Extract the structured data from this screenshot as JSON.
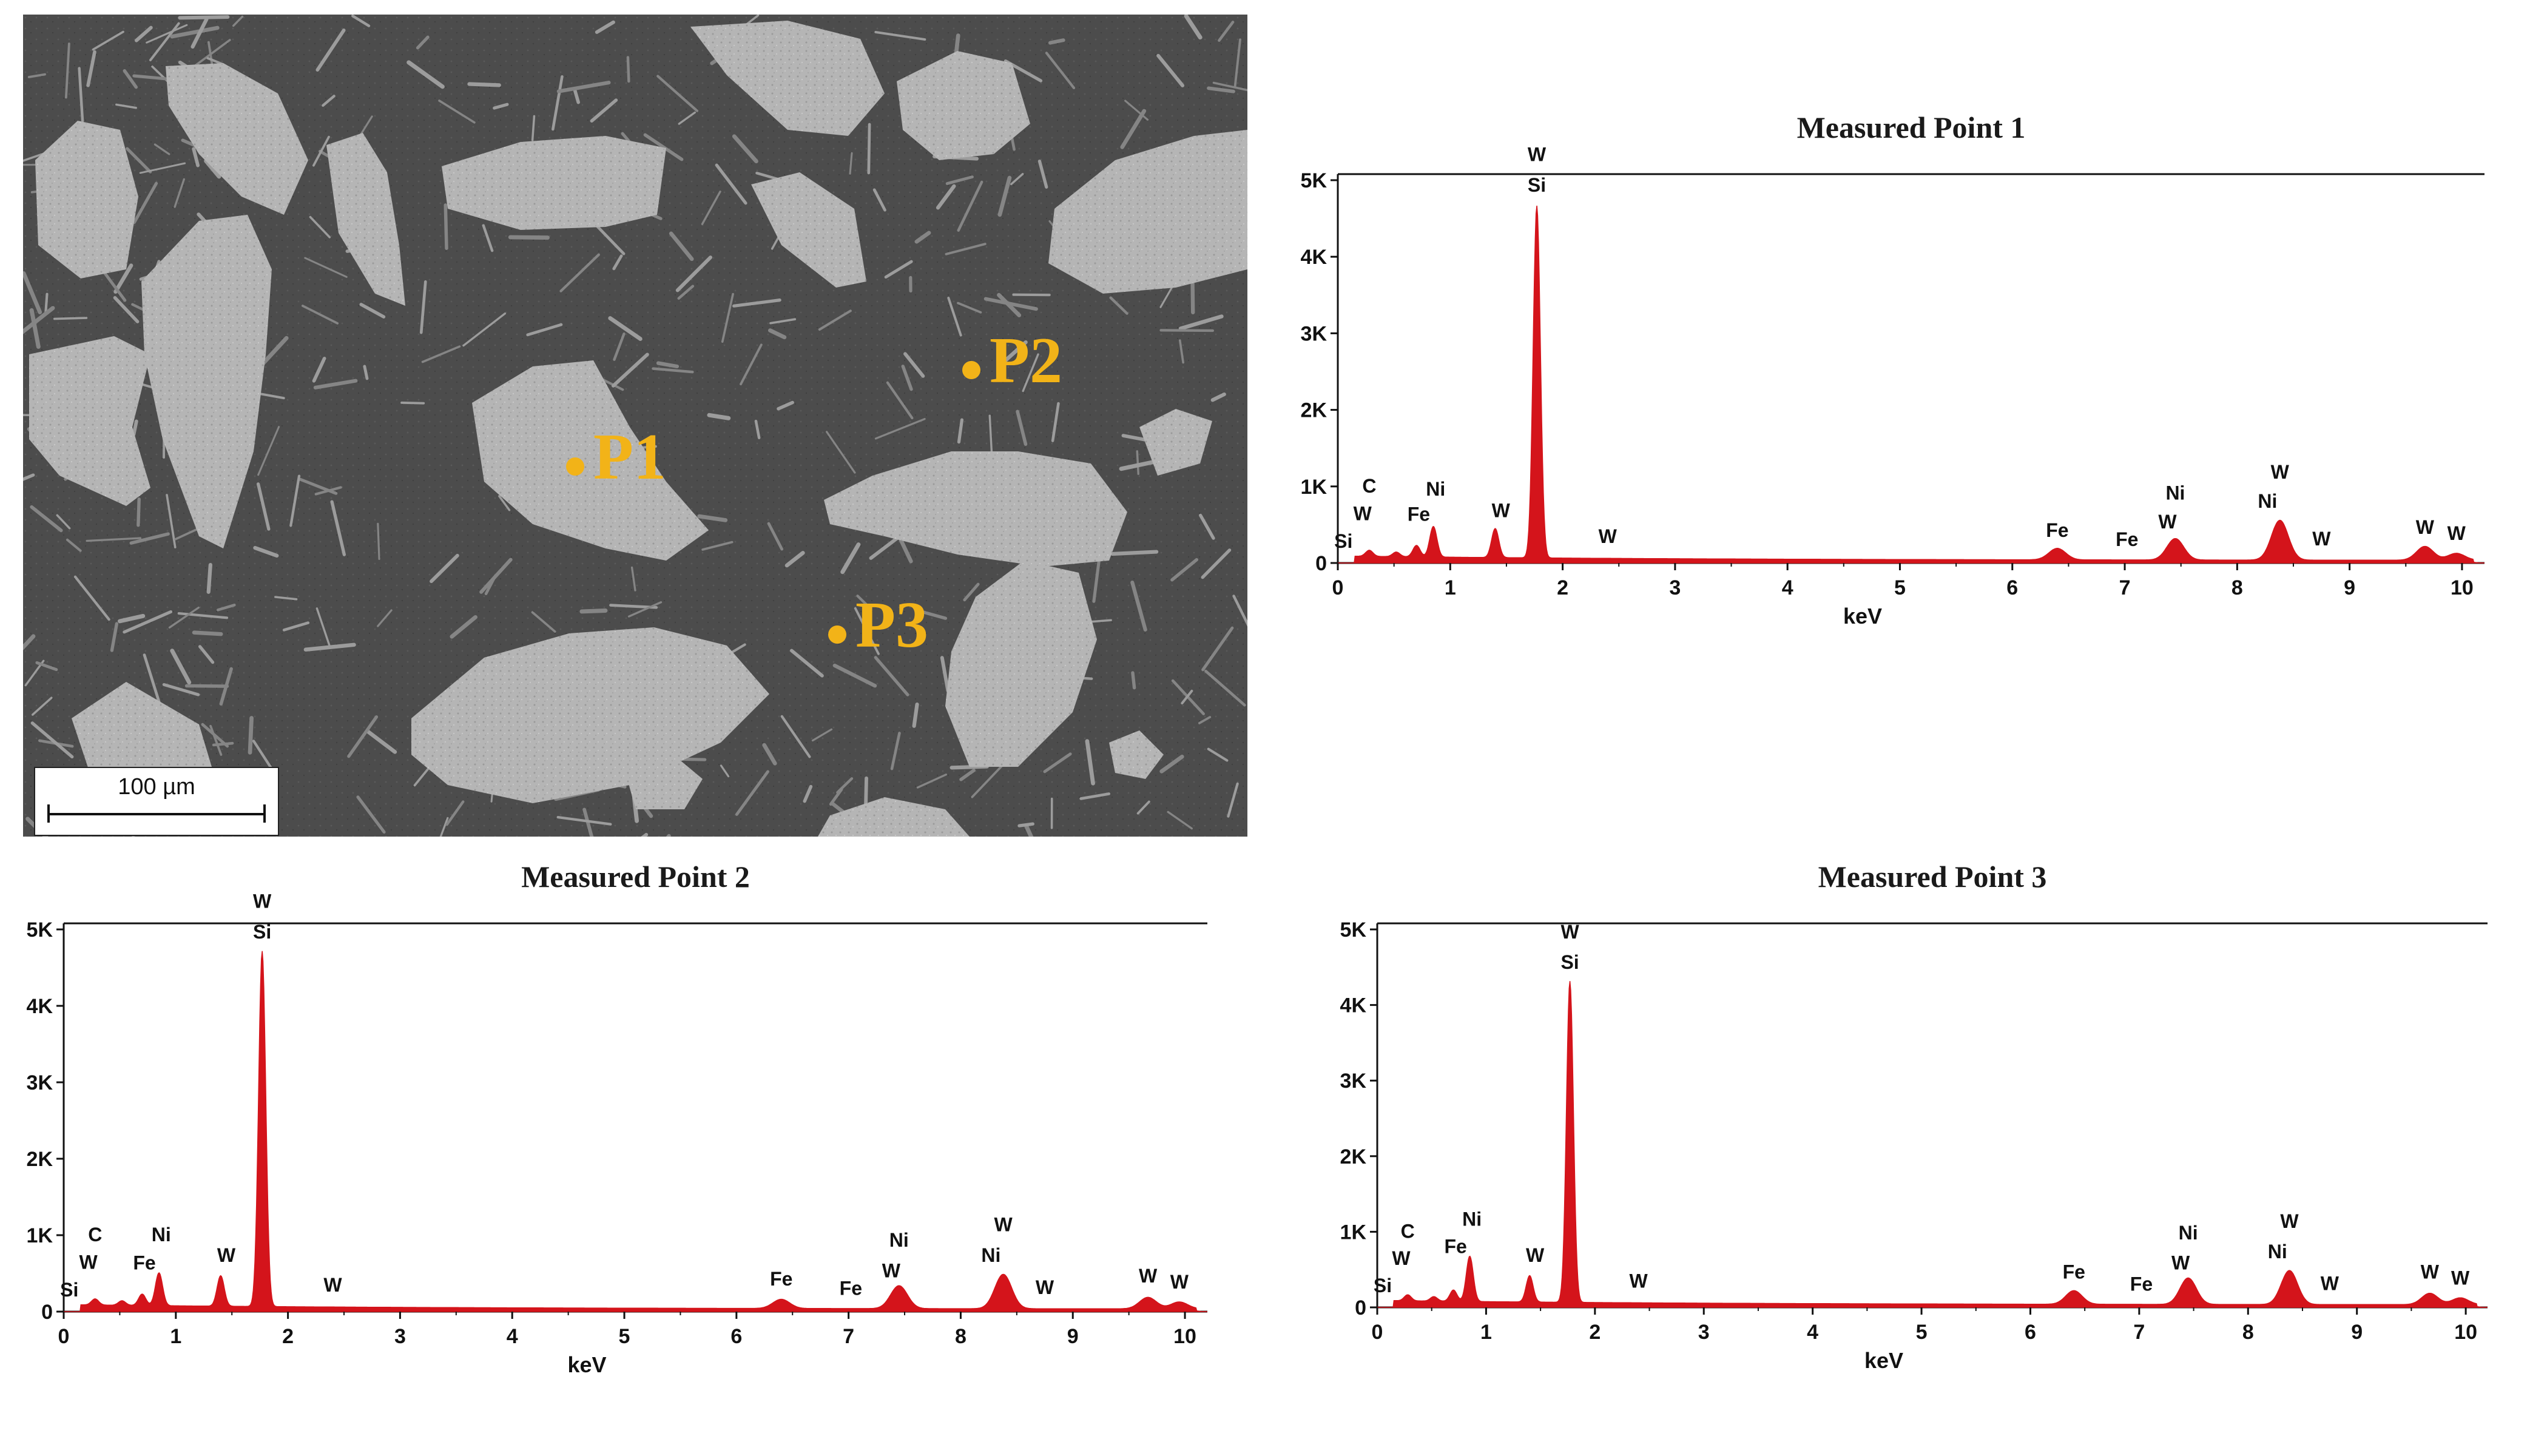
{
  "micrograph": {
    "scale_label": "100 µm",
    "point_color": "#f2b318",
    "points": [
      {
        "label": "P1"
      },
      {
        "label": "P2"
      },
      {
        "label": "P3"
      }
    ]
  },
  "colors": {
    "spectrum_fill": "#d4141b",
    "axis": "#111111"
  },
  "chart_data": [
    {
      "type": "area",
      "title": "Measured Point 1",
      "xlabel": "keV",
      "ylabel": "",
      "xlim": [
        0,
        10.2
      ],
      "ylim": [
        0,
        5000
      ],
      "x_ticks": [
        "0",
        "1",
        "2",
        "3",
        "4",
        "5",
        "6",
        "7",
        "8",
        "9",
        "10"
      ],
      "y_ticks": [
        "0",
        "1K",
        "2K",
        "3K",
        "4K",
        "5K"
      ],
      "peaks": [
        {
          "x": 0.28,
          "y": 80
        },
        {
          "x": 0.52,
          "y": 60
        },
        {
          "x": 0.7,
          "y": 150
        },
        {
          "x": 0.85,
          "y": 400
        },
        {
          "x": 1.4,
          "y": 380
        },
        {
          "x": 1.77,
          "y": 4600
        },
        {
          "x": 6.4,
          "y": 150
        },
        {
          "x": 7.45,
          "y": 280
        },
        {
          "x": 8.38,
          "y": 520
        },
        {
          "x": 9.67,
          "y": 180
        },
        {
          "x": 9.95,
          "y": 90
        }
      ],
      "peak_labels": [
        {
          "x": 0.05,
          "y": 200,
          "text": "Si"
        },
        {
          "x": 0.22,
          "y": 560,
          "text": "W"
        },
        {
          "x": 0.28,
          "y": 920,
          "text": "C"
        },
        {
          "x": 0.72,
          "y": 550,
          "text": "Fe"
        },
        {
          "x": 0.87,
          "y": 880,
          "text": "Ni"
        },
        {
          "x": 1.45,
          "y": 600,
          "text": "W"
        },
        {
          "x": 1.77,
          "y": 4850,
          "text": "Si"
        },
        {
          "x": 1.77,
          "y": 5250,
          "text": "W"
        },
        {
          "x": 2.4,
          "y": 260,
          "text": "W"
        },
        {
          "x": 6.4,
          "y": 340,
          "text": "Fe"
        },
        {
          "x": 7.02,
          "y": 220,
          "text": "Fe"
        },
        {
          "x": 7.38,
          "y": 450,
          "text": "W"
        },
        {
          "x": 7.45,
          "y": 830,
          "text": "Ni"
        },
        {
          "x": 8.27,
          "y": 720,
          "text": "Ni"
        },
        {
          "x": 8.38,
          "y": 1100,
          "text": "W"
        },
        {
          "x": 8.75,
          "y": 230,
          "text": "W"
        },
        {
          "x": 9.67,
          "y": 380,
          "text": "W"
        },
        {
          "x": 9.95,
          "y": 300,
          "text": "W"
        }
      ]
    },
    {
      "type": "area",
      "title": "Measured Point 2",
      "xlabel": "keV",
      "ylabel": "",
      "xlim": [
        0,
        10.2
      ],
      "ylim": [
        0,
        5000
      ],
      "x_ticks": [
        "0",
        "1",
        "2",
        "3",
        "4",
        "5",
        "6",
        "7",
        "8",
        "9",
        "10"
      ],
      "y_ticks": [
        "0",
        "1K",
        "2K",
        "3K",
        "4K",
        "5K"
      ],
      "peaks": [
        {
          "x": 0.28,
          "y": 80
        },
        {
          "x": 0.52,
          "y": 60
        },
        {
          "x": 0.7,
          "y": 150
        },
        {
          "x": 0.85,
          "y": 430
        },
        {
          "x": 1.4,
          "y": 400
        },
        {
          "x": 1.77,
          "y": 4650
        },
        {
          "x": 6.4,
          "y": 120
        },
        {
          "x": 7.45,
          "y": 300
        },
        {
          "x": 8.38,
          "y": 450
        },
        {
          "x": 9.67,
          "y": 150
        },
        {
          "x": 9.95,
          "y": 90
        }
      ],
      "peak_labels": [
        {
          "x": 0.05,
          "y": 200,
          "text": "Si"
        },
        {
          "x": 0.22,
          "y": 560,
          "text": "W"
        },
        {
          "x": 0.28,
          "y": 920,
          "text": "C"
        },
        {
          "x": 0.72,
          "y": 550,
          "text": "Fe"
        },
        {
          "x": 0.87,
          "y": 920,
          "text": "Ni"
        },
        {
          "x": 1.45,
          "y": 650,
          "text": "W"
        },
        {
          "x": 1.77,
          "y": 4880,
          "text": "Si"
        },
        {
          "x": 1.77,
          "y": 5280,
          "text": "W"
        },
        {
          "x": 2.4,
          "y": 260,
          "text": "W"
        },
        {
          "x": 6.4,
          "y": 340,
          "text": "Fe"
        },
        {
          "x": 7.02,
          "y": 220,
          "text": "Fe"
        },
        {
          "x": 7.38,
          "y": 450,
          "text": "W"
        },
        {
          "x": 7.45,
          "y": 850,
          "text": "Ni"
        },
        {
          "x": 8.27,
          "y": 650,
          "text": "Ni"
        },
        {
          "x": 8.38,
          "y": 1050,
          "text": "W"
        },
        {
          "x": 8.75,
          "y": 230,
          "text": "W"
        },
        {
          "x": 9.67,
          "y": 380,
          "text": "W"
        },
        {
          "x": 9.95,
          "y": 300,
          "text": "W"
        }
      ]
    },
    {
      "type": "area",
      "title": "Measured Point 3",
      "xlabel": "keV",
      "ylabel": "",
      "xlim": [
        0,
        10.2
      ],
      "ylim": [
        0,
        5000
      ],
      "x_ticks": [
        "0",
        "1",
        "2",
        "3",
        "4",
        "5",
        "6",
        "7",
        "8",
        "9",
        "10"
      ],
      "y_ticks": [
        "0",
        "1K",
        "2K",
        "3K",
        "4K",
        "5K"
      ],
      "peaks": [
        {
          "x": 0.28,
          "y": 80
        },
        {
          "x": 0.52,
          "y": 60
        },
        {
          "x": 0.7,
          "y": 150
        },
        {
          "x": 0.85,
          "y": 600
        },
        {
          "x": 1.4,
          "y": 350
        },
        {
          "x": 1.77,
          "y": 4250
        },
        {
          "x": 6.4,
          "y": 180
        },
        {
          "x": 7.45,
          "y": 350
        },
        {
          "x": 8.38,
          "y": 450
        },
        {
          "x": 9.67,
          "y": 150
        },
        {
          "x": 9.95,
          "y": 90
        }
      ],
      "peak_labels": [
        {
          "x": 0.05,
          "y": 200,
          "text": "Si"
        },
        {
          "x": 0.22,
          "y": 560,
          "text": "W"
        },
        {
          "x": 0.28,
          "y": 920,
          "text": "C"
        },
        {
          "x": 0.72,
          "y": 720,
          "text": "Fe"
        },
        {
          "x": 0.87,
          "y": 1080,
          "text": "Ni"
        },
        {
          "x": 1.45,
          "y": 600,
          "text": "W"
        },
        {
          "x": 1.77,
          "y": 4480,
          "text": "Si"
        },
        {
          "x": 1.77,
          "y": 4880,
          "text": "W"
        },
        {
          "x": 2.4,
          "y": 260,
          "text": "W"
        },
        {
          "x": 6.4,
          "y": 380,
          "text": "Fe"
        },
        {
          "x": 7.02,
          "y": 220,
          "text": "Fe"
        },
        {
          "x": 7.38,
          "y": 500,
          "text": "W"
        },
        {
          "x": 7.45,
          "y": 900,
          "text": "Ni"
        },
        {
          "x": 8.27,
          "y": 650,
          "text": "Ni"
        },
        {
          "x": 8.38,
          "y": 1050,
          "text": "W"
        },
        {
          "x": 8.75,
          "y": 230,
          "text": "W"
        },
        {
          "x": 9.67,
          "y": 380,
          "text": "W"
        },
        {
          "x": 9.95,
          "y": 300,
          "text": "W"
        }
      ]
    }
  ]
}
